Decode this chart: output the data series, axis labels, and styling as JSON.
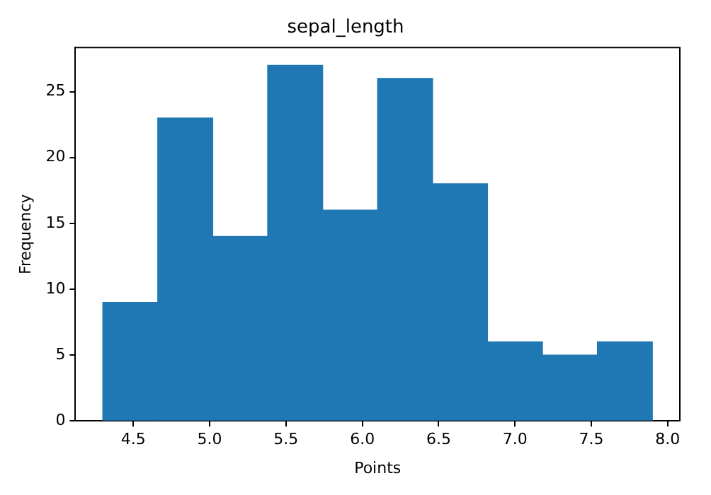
{
  "chart_data": {
    "type": "histogram",
    "title": "sepal_length",
    "xlabel": "Points",
    "ylabel": "Frequency",
    "bins": [
      4.3,
      4.66,
      5.02,
      5.38,
      5.74,
      6.1,
      6.46,
      6.82,
      7.18,
      7.54,
      7.9
    ],
    "values": [
      9,
      23,
      14,
      27,
      16,
      26,
      18,
      6,
      5,
      6
    ],
    "color": "#1f77b4",
    "xlim": [
      4.12,
      8.08
    ],
    "xticks": [
      {
        "value": 4.5,
        "label": "4.5"
      },
      {
        "value": 5.0,
        "label": "5.0"
      },
      {
        "value": 5.5,
        "label": "5.5"
      },
      {
        "value": 6.0,
        "label": "6.0"
      },
      {
        "value": 6.5,
        "label": "6.5"
      },
      {
        "value": 7.0,
        "label": "7.0"
      },
      {
        "value": 7.5,
        "label": "7.5"
      },
      {
        "value": 8.0,
        "label": "8.0"
      }
    ],
    "ylim": [
      0,
      28.35
    ],
    "yticks": [
      0,
      5,
      10,
      15,
      20,
      25
    ],
    "grid": false,
    "legend": false
  }
}
